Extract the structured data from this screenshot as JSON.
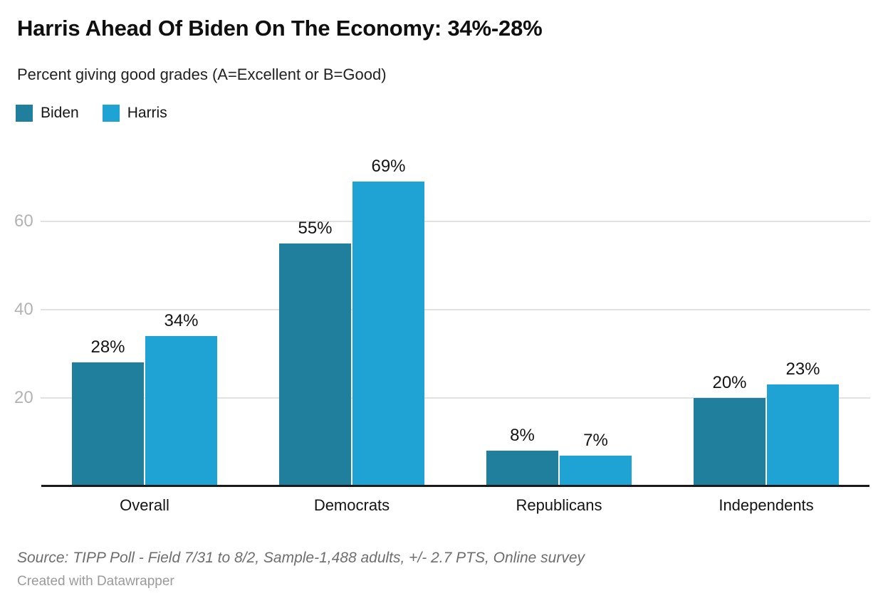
{
  "header": {
    "title": "Harris Ahead Of Biden On The Economy: 34%-28%",
    "subtitle": "Percent giving good grades (A=Excellent or B=Good)"
  },
  "legend": {
    "items": [
      {
        "label": "Biden",
        "color": "#217f9e"
      },
      {
        "label": "Harris",
        "color": "#1ea3d4"
      }
    ]
  },
  "chart_data": {
    "type": "bar",
    "title": "Harris Ahead Of Biden On The Economy: 34%-28%",
    "subtitle": "Percent giving good grades (A=Excellent or B=Good)",
    "categories": [
      "Overall",
      "Democrats",
      "Republicans",
      "Independents"
    ],
    "series": [
      {
        "name": "Biden",
        "color": "#217f9e",
        "values": [
          28,
          55,
          8,
          20
        ]
      },
      {
        "name": "Harris",
        "color": "#1ea3d4",
        "values": [
          34,
          69,
          7,
          23
        ]
      }
    ],
    "value_suffix": "%",
    "y_ticks": [
      20,
      40,
      60
    ],
    "ylim": [
      0,
      77
    ],
    "grid": true,
    "grid_color": "#e2e2e2",
    "axis_color": "#1a1a1a",
    "tick_label_color": "#b3b3b3",
    "legend_position": "top-left"
  },
  "footer": {
    "source": "Source: TIPP Poll - Field 7/31 to 8/2, Sample-1,488 adults, +/- 2.7 PTS, Online survey",
    "credit": "Created with Datawrapper"
  }
}
